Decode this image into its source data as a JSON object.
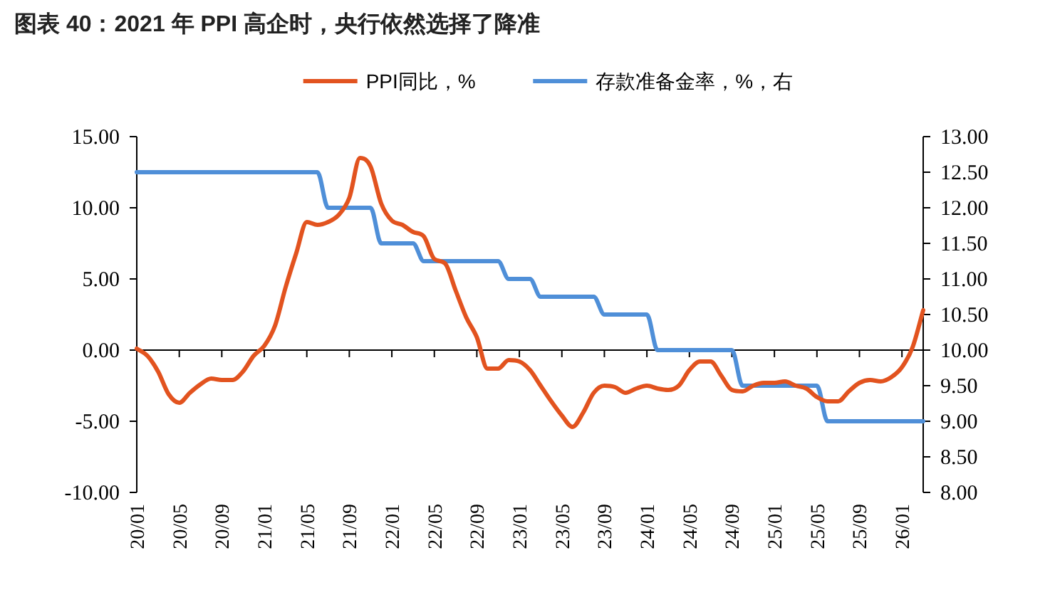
{
  "chart_data": {
    "type": "line",
    "title": "图表 40：2021 年 PPI 高企时，央行依然选择了降准",
    "categories": [
      "20/01",
      null,
      null,
      null,
      "20/05",
      null,
      null,
      null,
      "20/09",
      null,
      null,
      null,
      "21/01",
      null,
      null,
      null,
      "21/05",
      null,
      null,
      null,
      "21/09",
      null,
      null,
      null,
      "22/01",
      null,
      null,
      null,
      "22/05",
      null,
      null,
      null,
      "22/09",
      null,
      null,
      null,
      "23/01",
      null,
      null,
      null,
      "23/05",
      null,
      null,
      null,
      "23/09",
      null,
      null,
      null,
      "24/01",
      null,
      null,
      null,
      "24/05",
      null,
      null,
      null,
      "24/09",
      null,
      null,
      null,
      "25/01",
      null,
      null,
      null,
      "25/05",
      null,
      null,
      null,
      "25/09",
      null,
      null,
      null,
      "26/01",
      null,
      null
    ],
    "series": [
      {
        "name": "PPI同比，%",
        "color": "#e2531f",
        "values": [
          0.1,
          -0.4,
          -1.5,
          -3.1,
          -3.7,
          -3.0,
          -2.4,
          -2.0,
          -2.1,
          -2.1,
          -1.5,
          -0.4,
          0.3,
          1.7,
          4.4,
          6.8,
          9.0,
          8.8,
          9.0,
          9.5,
          10.7,
          13.5,
          12.9,
          10.3,
          9.1,
          8.8,
          8.3,
          8.0,
          6.4,
          6.1,
          4.2,
          2.3,
          0.9,
          -1.3,
          -1.3,
          -0.7,
          -0.8,
          -1.4,
          -2.5,
          -3.6,
          -4.6,
          -5.4,
          -4.4,
          -3.0,
          -2.5,
          -2.6,
          -3.0,
          -2.7,
          -2.5,
          -2.7,
          -2.8,
          -2.5,
          -1.4,
          -0.8,
          -0.8,
          -1.8,
          -2.8,
          -2.9,
          -2.5,
          -2.3,
          -2.3,
          -2.2,
          -2.5,
          -2.7,
          -3.3,
          -3.6,
          -3.6,
          -2.9,
          -2.3,
          -2.1,
          -2.2,
          -1.9,
          -1.2,
          0.2,
          2.8
        ]
      },
      {
        "name": "存款准备金率，%，右",
        "color": "#4f8fd8",
        "axis": "y2",
        "values": [
          12.5,
          12.5,
          12.5,
          12.5,
          12.5,
          12.5,
          12.5,
          12.5,
          12.5,
          12.5,
          12.5,
          12.5,
          12.5,
          12.5,
          12.5,
          12.5,
          12.5,
          12.5,
          12.0,
          12.0,
          12.0,
          12.0,
          12.0,
          11.5,
          11.5,
          11.5,
          11.5,
          11.25,
          11.25,
          11.25,
          11.25,
          11.25,
          11.25,
          11.25,
          11.25,
          11.0,
          11.0,
          11.0,
          10.75,
          10.75,
          10.75,
          10.75,
          10.75,
          10.75,
          10.5,
          10.5,
          10.5,
          10.5,
          10.5,
          10.0,
          10.0,
          10.0,
          10.0,
          10.0,
          10.0,
          10.0,
          10.0,
          9.5,
          9.5,
          9.5,
          9.5,
          9.5,
          9.5,
          9.5,
          9.5,
          9.0,
          9.0,
          9.0,
          9.0,
          9.0,
          9.0,
          9.0,
          9.0,
          9.0,
          9.0
        ]
      }
    ],
    "ylim": [
      -10,
      15
    ],
    "yticks": [
      {
        "value": -10,
        "label": "-10.00"
      },
      {
        "value": -5,
        "label": "-5.00"
      },
      {
        "value": 0,
        "label": "0.00"
      },
      {
        "value": 5,
        "label": "5.00"
      },
      {
        "value": 10,
        "label": "10.00"
      },
      {
        "value": 15,
        "label": "15.00"
      }
    ],
    "y2lim": [
      8,
      13
    ],
    "y2ticks": [
      {
        "value": 8,
        "label": "8.00"
      },
      {
        "value": 8.5,
        "label": "8.50"
      },
      {
        "value": 9,
        "label": "9.00"
      },
      {
        "value": 9.5,
        "label": "9.50"
      },
      {
        "value": 10,
        "label": "10.00"
      },
      {
        "value": 10.5,
        "label": "10.50"
      },
      {
        "value": 11,
        "label": "11.00"
      },
      {
        "value": 11.5,
        "label": "11.50"
      },
      {
        "value": 12,
        "label": "12.00"
      },
      {
        "value": 12.5,
        "label": "12.50"
      },
      {
        "value": 13,
        "label": "13.00"
      }
    ],
    "legend": "top"
  }
}
